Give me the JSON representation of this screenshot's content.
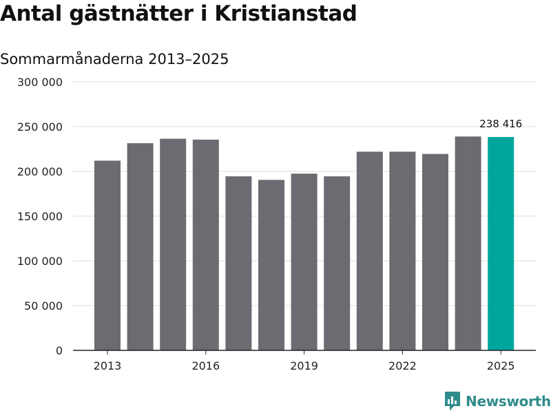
{
  "title": "Antal gästnätter i Kristianstad",
  "subtitle": "Sommarmånaderna 2013–2025",
  "brand": {
    "name": "Newsworthy",
    "icon": "newsworthy-logo-icon"
  },
  "colors": {
    "bar": "#6c6b71",
    "highlight": "#00a69c",
    "grid": "#dcdcdc",
    "axis": "#222222",
    "brand": "#2f8c8a"
  },
  "chart_data": {
    "type": "bar",
    "categories": [
      "2013",
      "2014",
      "2015",
      "2016",
      "2017",
      "2018",
      "2019",
      "2020",
      "2021",
      "2022",
      "2023",
      "2024",
      "2025"
    ],
    "values": [
      212000,
      231500,
      236500,
      235500,
      194500,
      190500,
      197500,
      194500,
      222000,
      222000,
      219500,
      239000,
      238416
    ],
    "highlight_index": 12,
    "data_labels": [
      {
        "index": 12,
        "text": "238 416"
      }
    ],
    "x_tick_labels": [
      "2013",
      "2016",
      "2019",
      "2022",
      "2025"
    ],
    "y_tick_labels": [
      "0",
      "50 000",
      "100 000",
      "150 000",
      "200 000",
      "250 000",
      "300 000"
    ],
    "y_ticks": [
      0,
      50000,
      100000,
      150000,
      200000,
      250000,
      300000
    ],
    "ylim": [
      0,
      300000
    ],
    "grid": true
  }
}
